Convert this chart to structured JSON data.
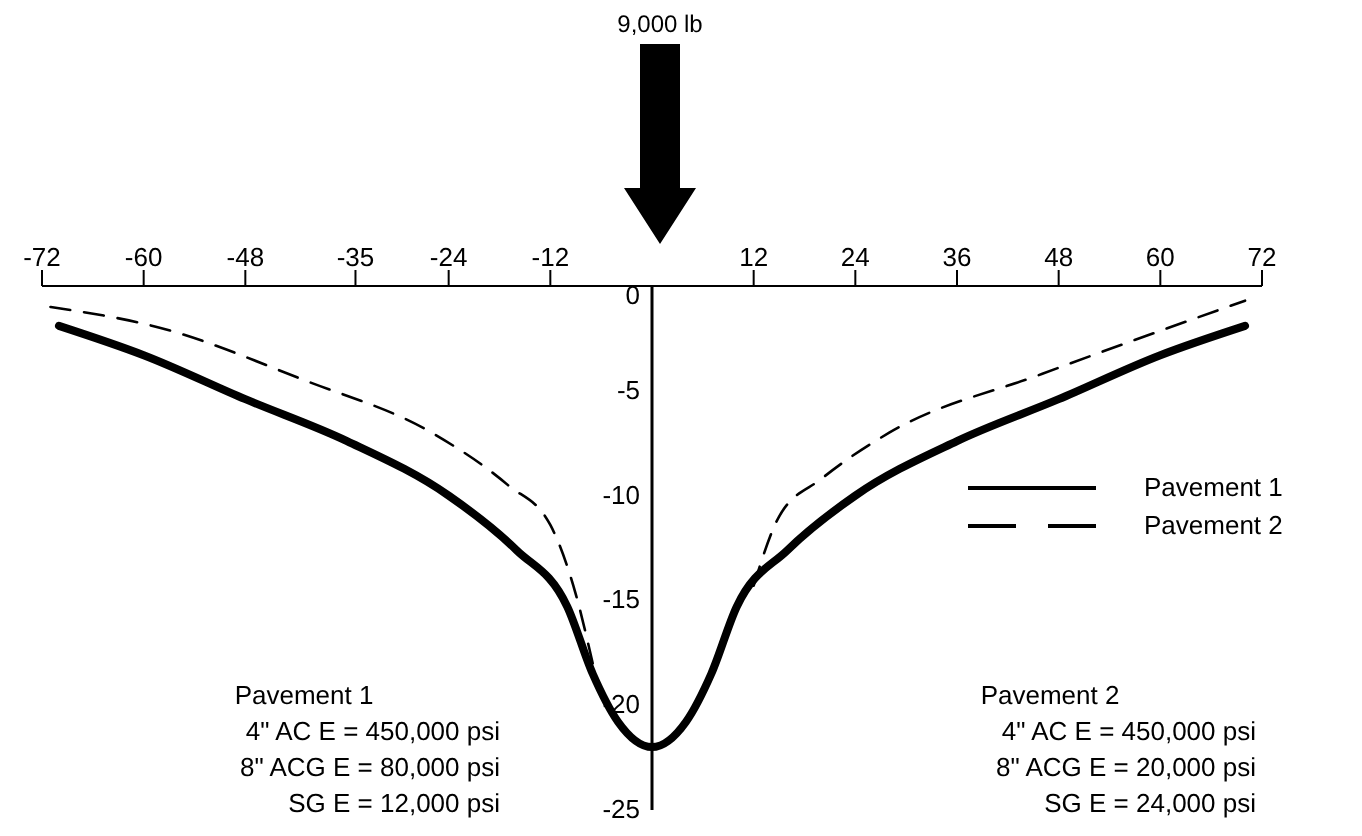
{
  "chart_data": {
    "type": "line",
    "xlim": [
      -72,
      72
    ],
    "xticks": [
      -72,
      -60,
      -48,
      -35,
      -24,
      -12,
      12,
      24,
      36,
      48,
      60,
      72
    ],
    "ylim": [
      -25,
      0
    ],
    "yticks": [
      0,
      -5,
      -10,
      -15,
      -20,
      -25
    ],
    "legend": "right",
    "marker": "none",
    "annotations": [
      "9,000 lb",
      "Pavement 1",
      "4\" AC E = 450,000 psi",
      "8\" ACG E = 80,000 psi",
      "SG E = 12,000 psi",
      "Pavement 2",
      "4\" AC E = 450,000 psi",
      "8\" ACG E = 20,000 psi",
      "SG E = 24,000 psi"
    ],
    "series": [
      {
        "name": "Pavement 1",
        "color": "#000000",
        "line_style": "solid",
        "x": [
          -70,
          -60,
          -48,
          -36,
          -24,
          -16,
          -10,
          -7,
          -4,
          0,
          4,
          7,
          10,
          16,
          24,
          36,
          48,
          60,
          70
        ],
        "values": [
          -1.9,
          -3.3,
          -5.4,
          -7.4,
          -10.0,
          -12.6,
          -15.3,
          -18.5,
          -20.8,
          -22,
          -20.8,
          -18.5,
          -15.3,
          -12.6,
          -10.0,
          -7.4,
          -5.4,
          -3.3,
          -1.9
        ]
      },
      {
        "name": "Pavement 2",
        "color": "#000000",
        "line_style": "dashed",
        "x": [
          -71,
          -58,
          -41,
          -26,
          -17,
          -12,
          -9,
          -7,
          7,
          12,
          15,
          20,
          28,
          46,
          70
        ],
        "values": [
          -1.0,
          -2.0,
          -4.5,
          -7.0,
          -9.5,
          -11.4,
          -14.7,
          -18.0,
          null,
          -14.3,
          -11.0,
          -9.2,
          -7.0,
          -4.2,
          -0.7
        ]
      }
    ]
  }
}
